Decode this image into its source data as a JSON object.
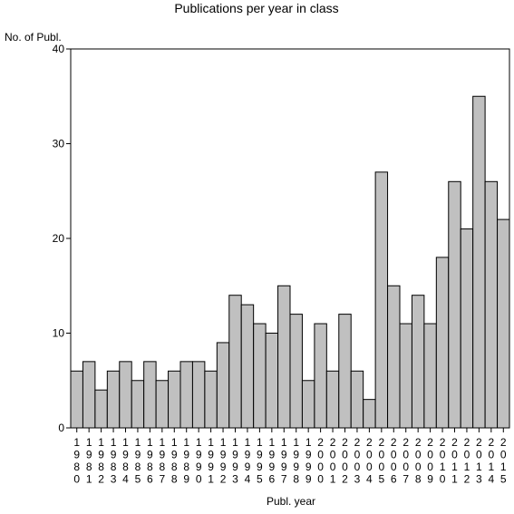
{
  "chart_data": {
    "type": "bar",
    "title": "Publications per year in class",
    "ylabel": "No. of Publ.",
    "xlabel": "Publ. year",
    "ylim": [
      0,
      40
    ],
    "yticks": [
      0,
      10,
      20,
      30,
      40
    ],
    "categories": [
      "1980",
      "1981",
      "1982",
      "1983",
      "1984",
      "1985",
      "1986",
      "1987",
      "1988",
      "1989",
      "1990",
      "1991",
      "1992",
      "1993",
      "1994",
      "1995",
      "1996",
      "1997",
      "1998",
      "1999",
      "2000",
      "2001",
      "2002",
      "2003",
      "2004",
      "2005",
      "2006",
      "2007",
      "2008",
      "2009",
      "2010",
      "2011",
      "2012",
      "2013",
      "2014",
      "2015"
    ],
    "values": [
      6,
      7,
      4,
      6,
      7,
      5,
      7,
      5,
      6,
      7,
      7,
      6,
      9,
      14,
      13,
      11,
      10,
      15,
      12,
      5,
      11,
      6,
      12,
      6,
      3,
      27,
      15,
      11,
      14,
      11,
      18,
      26,
      21,
      35,
      26,
      22
    ],
    "bar_color": "#c0c0c0",
    "grid": false,
    "legend": "none"
  }
}
